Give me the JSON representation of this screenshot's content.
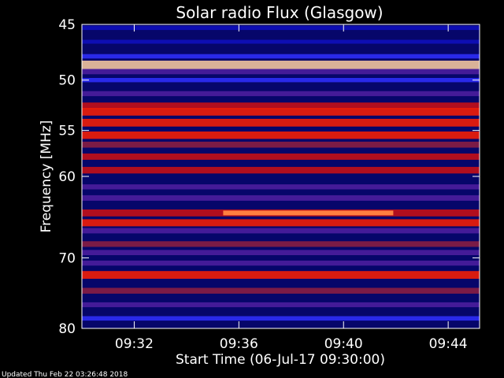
{
  "chart_data": {
    "type": "heatmap",
    "title": "Solar radio Flux (Glasgow)",
    "xlabel": "Start Time (06-Jul-17 09:30:00)",
    "ylabel": "Frequency [MHz]",
    "x_unit": "minutes after 09:30:00",
    "xlim": [
      0,
      15.2
    ],
    "ylim": [
      45,
      80
    ],
    "y_scale": "log",
    "y_inverted": true,
    "x_ticks": [
      {
        "value": 2,
        "label": "09:32"
      },
      {
        "value": 6,
        "label": "09:36"
      },
      {
        "value": 10,
        "label": "09:40"
      },
      {
        "value": 14,
        "label": "09:44"
      }
    ],
    "y_ticks": [
      {
        "value": 45,
        "label": "45"
      },
      {
        "value": 50,
        "label": "50"
      },
      {
        "value": 55,
        "label": "55"
      },
      {
        "value": 60,
        "label": "60"
      },
      {
        "value": 70,
        "label": "70"
      },
      {
        "value": 80,
        "label": "80"
      }
    ],
    "colorscale": [
      "#000060",
      "#1010c0",
      "#3030ff",
      "#5020a0",
      "#902040",
      "#d01010",
      "#ff2000",
      "#ff8040",
      "#ffd0a0",
      "#ffffff"
    ],
    "bands": [
      {
        "freq": 45.3,
        "intensity": 0.15
      },
      {
        "freq": 46.5,
        "intensity": 0.12
      },
      {
        "freq": 47.8,
        "intensity": 0.2
      },
      {
        "freq": 48.6,
        "intensity": 0.9
      },
      {
        "freq": 49.2,
        "intensity": 0.35
      },
      {
        "freq": 50.0,
        "intensity": 0.18
      },
      {
        "freq": 51.3,
        "intensity": 0.3
      },
      {
        "freq": 52.5,
        "intensity": 0.55
      },
      {
        "freq": 53.1,
        "intensity": 0.7
      },
      {
        "freq": 54.2,
        "intensity": 0.72
      },
      {
        "freq": 55.5,
        "intensity": 0.68
      },
      {
        "freq": 56.5,
        "intensity": 0.45
      },
      {
        "freq": 57.8,
        "intensity": 0.5
      },
      {
        "freq": 59.3,
        "intensity": 0.55
      },
      {
        "freq": 61.2,
        "intensity": 0.3
      },
      {
        "freq": 62.5,
        "intensity": 0.38
      },
      {
        "freq": 64.3,
        "intensity": 0.6
      },
      {
        "freq": 65.5,
        "intensity": 0.62
      },
      {
        "freq": 66.5,
        "intensity": 0.35
      },
      {
        "freq": 68.2,
        "intensity": 0.4
      },
      {
        "freq": 69.3,
        "intensity": 0.32
      },
      {
        "freq": 70.7,
        "intensity": 0.3
      },
      {
        "freq": 72.3,
        "intensity": 0.72
      },
      {
        "freq": 74.5,
        "intensity": 0.42
      },
      {
        "freq": 76.5,
        "intensity": 0.28
      },
      {
        "freq": 78.5,
        "intensity": 0.2
      }
    ],
    "burst": {
      "freq": 64.3,
      "start": 5.4,
      "end": 11.9,
      "intensity": 0.95
    }
  },
  "footer": {
    "updated": "Updated Thu Feb 22 03:26:48 2018"
  }
}
